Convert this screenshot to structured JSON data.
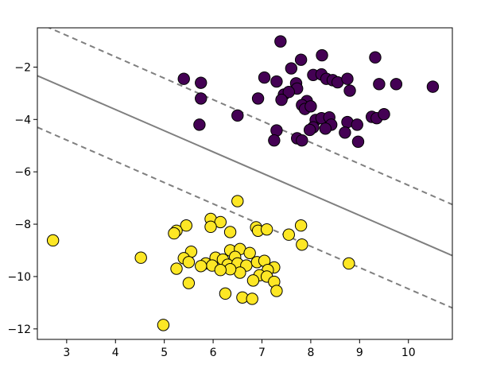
{
  "chart_data": {
    "type": "scatter",
    "title": "",
    "xlabel": "",
    "ylabel": "",
    "xlim": [
      2.4,
      10.9
    ],
    "ylim": [
      -12.4,
      -0.5
    ],
    "xticks": [
      3,
      4,
      5,
      6,
      7,
      8,
      9,
      10
    ],
    "yticks": [
      -2,
      -4,
      -6,
      -8,
      -10,
      -12
    ],
    "grid": false,
    "legend": "none",
    "colors": {
      "class0": "#440154",
      "class1": "#fde725",
      "marker_edge": "#000000",
      "lines": "#7f7f7f"
    },
    "series": [
      {
        "points": [
          [
            7.38,
            -1.02
          ],
          [
            9.32,
            -1.63
          ],
          [
            8.23,
            -1.55
          ],
          [
            7.8,
            -1.72
          ],
          [
            5.4,
            -2.45
          ],
          [
            5.75,
            -2.6
          ],
          [
            7.05,
            -2.4
          ],
          [
            7.3,
            -2.55
          ],
          [
            7.6,
            -2.05
          ],
          [
            7.7,
            -2.62
          ],
          [
            7.72,
            -2.82
          ],
          [
            8.05,
            -2.3
          ],
          [
            8.22,
            -2.28
          ],
          [
            8.32,
            -2.45
          ],
          [
            8.45,
            -2.5
          ],
          [
            8.55,
            -2.58
          ],
          [
            8.75,
            -2.45
          ],
          [
            9.4,
            -2.65
          ],
          [
            9.75,
            -2.65
          ],
          [
            10.5,
            -2.75
          ],
          [
            8.8,
            -2.9
          ],
          [
            5.75,
            -3.2
          ],
          [
            6.92,
            -3.2
          ],
          [
            7.45,
            -3.05
          ],
          [
            7.55,
            -2.95
          ],
          [
            7.4,
            -3.25
          ],
          [
            7.92,
            -3.3
          ],
          [
            7.82,
            -3.45
          ],
          [
            7.88,
            -3.6
          ],
          [
            8.0,
            -3.5
          ],
          [
            6.5,
            -3.85
          ],
          [
            8.1,
            -4.02
          ],
          [
            8.22,
            -3.95
          ],
          [
            8.38,
            -3.92
          ],
          [
            8.42,
            -4.2
          ],
          [
            8.3,
            -4.35
          ],
          [
            8.05,
            -4.3
          ],
          [
            7.98,
            -4.4
          ],
          [
            8.75,
            -4.1
          ],
          [
            8.95,
            -4.2
          ],
          [
            9.25,
            -3.9
          ],
          [
            9.35,
            -3.95
          ],
          [
            9.5,
            -3.8
          ],
          [
            5.72,
            -4.2
          ],
          [
            7.3,
            -4.42
          ],
          [
            7.25,
            -4.8
          ],
          [
            7.72,
            -4.72
          ],
          [
            7.82,
            -4.8
          ],
          [
            8.7,
            -4.5
          ],
          [
            8.97,
            -4.85
          ]
        ]
      },
      {
        "points": [
          [
            6.5,
            -7.12
          ],
          [
            5.95,
            -7.8
          ],
          [
            6.15,
            -7.92
          ],
          [
            5.45,
            -8.05
          ],
          [
            5.95,
            -8.1
          ],
          [
            5.25,
            -8.25
          ],
          [
            5.2,
            -8.35
          ],
          [
            6.35,
            -8.3
          ],
          [
            6.88,
            -8.12
          ],
          [
            6.92,
            -8.25
          ],
          [
            7.1,
            -8.2
          ],
          [
            7.55,
            -8.4
          ],
          [
            7.8,
            -8.05
          ],
          [
            7.82,
            -8.78
          ],
          [
            2.72,
            -8.62
          ],
          [
            5.55,
            -9.05
          ],
          [
            6.35,
            -9.0
          ],
          [
            6.55,
            -8.95
          ],
          [
            6.75,
            -9.1
          ],
          [
            6.45,
            -9.25
          ],
          [
            6.05,
            -9.28
          ],
          [
            6.2,
            -9.35
          ],
          [
            5.4,
            -9.3
          ],
          [
            5.5,
            -9.45
          ],
          [
            4.52,
            -9.28
          ],
          [
            5.85,
            -9.5
          ],
          [
            5.98,
            -9.58
          ],
          [
            6.3,
            -9.55
          ],
          [
            6.5,
            -9.5
          ],
          [
            6.68,
            -9.58
          ],
          [
            6.9,
            -9.45
          ],
          [
            7.05,
            -9.4
          ],
          [
            7.25,
            -9.65
          ],
          [
            7.12,
            -9.75
          ],
          [
            6.95,
            -9.95
          ],
          [
            7.1,
            -10.0
          ],
          [
            6.55,
            -9.85
          ],
          [
            6.35,
            -9.72
          ],
          [
            6.15,
            -9.75
          ],
          [
            5.75,
            -9.6
          ],
          [
            5.25,
            -9.7
          ],
          [
            6.82,
            -10.15
          ],
          [
            5.5,
            -10.25
          ],
          [
            7.25,
            -10.2
          ],
          [
            8.78,
            -9.5
          ],
          [
            6.25,
            -10.65
          ],
          [
            7.3,
            -10.55
          ],
          [
            6.6,
            -10.8
          ],
          [
            6.8,
            -10.85
          ],
          [
            4.98,
            -11.85
          ]
        ]
      }
    ],
    "lines": [
      {
        "style": "solid",
        "points": [
          [
            2.4,
            -2.33
          ],
          [
            10.9,
            -9.2
          ]
        ]
      },
      {
        "style": "dashed",
        "points": [
          [
            2.4,
            -0.3
          ],
          [
            10.9,
            -7.25
          ]
        ]
      },
      {
        "style": "dashed",
        "points": [
          [
            2.4,
            -4.3
          ],
          [
            10.9,
            -11.2
          ]
        ]
      }
    ]
  }
}
